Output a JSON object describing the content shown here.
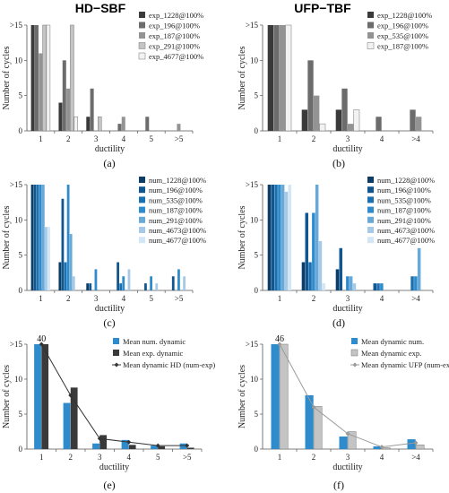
{
  "titles": {
    "left": "HD−SBF",
    "right": "UFP−TBF"
  },
  "chart_data": [
    {
      "id": "a",
      "type": "bar",
      "panel_label": "(a)",
      "xlabel": "ductility",
      "ylabel": "Number of cycles",
      "categories": [
        "1",
        "2",
        "3",
        "4",
        "5",
        ">5"
      ],
      "ylim": [
        0,
        15
      ],
      "yticks": [
        "0",
        "5",
        "10",
        ">15"
      ],
      "legend": "top-right",
      "series": [
        {
          "name": "exp_1228@100%",
          "color": "#3a3a3a",
          "values": [
            15,
            4,
            2,
            0,
            0,
            0
          ]
        },
        {
          "name": "exp_196@100%",
          "color": "#6c6c6c",
          "values": [
            15,
            10,
            6,
            1,
            2,
            0
          ]
        },
        {
          "name": "exp_187@100%",
          "color": "#939393",
          "values": [
            11,
            6,
            0,
            2,
            0,
            1
          ]
        },
        {
          "name": "exp_291@100%",
          "color": "#c4c4c4",
          "values": [
            15,
            15,
            2,
            0,
            0,
            0
          ]
        },
        {
          "name": "exp_4677@100%",
          "color": "#f2f2f2",
          "values": [
            15,
            2,
            0,
            0,
            0,
            0
          ]
        }
      ]
    },
    {
      "id": "b",
      "type": "bar",
      "panel_label": "(b)",
      "xlabel": "ductility",
      "ylabel": "Number of cycles",
      "categories": [
        "1",
        "2",
        "3",
        "4",
        ">4"
      ],
      "ylim": [
        0,
        15
      ],
      "yticks": [
        "0",
        "5",
        "10",
        ">15"
      ],
      "legend": "top-right",
      "series": [
        {
          "name": "exp_1228@100%",
          "color": "#3a3a3a",
          "values": [
            15,
            3,
            3,
            0,
            0
          ]
        },
        {
          "name": "exp_196@100%",
          "color": "#6c6c6c",
          "values": [
            15,
            10,
            6,
            2,
            3
          ]
        },
        {
          "name": "exp_535@100%",
          "color": "#939393",
          "values": [
            15,
            5,
            1,
            0,
            2
          ]
        },
        {
          "name": "exp_187@100%",
          "color": "#f2f2f2",
          "values": [
            15,
            1,
            3,
            0,
            0
          ]
        }
      ]
    },
    {
      "id": "c",
      "type": "bar",
      "panel_label": "(c)",
      "xlabel": "ductility",
      "ylabel": "Number of cycles",
      "categories": [
        "1",
        "2",
        "3",
        "4",
        "5",
        ">5"
      ],
      "ylim": [
        0,
        15
      ],
      "yticks": [
        "0",
        "5",
        "10",
        ">15"
      ],
      "legend": "top-right",
      "series": [
        {
          "name": "num_1228@100%",
          "color": "#0b3d68",
          "values": [
            15,
            4,
            1,
            0,
            0,
            0
          ]
        },
        {
          "name": "num_196@100%",
          "color": "#11568f",
          "values": [
            15,
            13,
            1,
            4,
            1,
            2
          ]
        },
        {
          "name": "num_535@100%",
          "color": "#1a70b0",
          "values": [
            15,
            4,
            0,
            1,
            0,
            0
          ]
        },
        {
          "name": "num_187@100%",
          "color": "#2e8bcc",
          "values": [
            15,
            15,
            3,
            2,
            2,
            3
          ]
        },
        {
          "name": "num_291@100%",
          "color": "#68a9d8",
          "values": [
            15,
            8,
            0,
            0,
            0,
            0
          ]
        },
        {
          "name": "num_4673@100%",
          "color": "#a5c9e7",
          "values": [
            9,
            2,
            0,
            3,
            1,
            2
          ]
        },
        {
          "name": "num_4677@100%",
          "color": "#d3e6f5",
          "values": [
            9,
            0,
            0,
            0,
            0,
            0
          ]
        }
      ]
    },
    {
      "id": "d",
      "type": "bar",
      "panel_label": "(d)",
      "xlabel": "ductility",
      "ylabel": "Number of cycles",
      "categories": [
        "1",
        "2",
        "3",
        "4",
        ">4"
      ],
      "ylim": [
        0,
        15
      ],
      "yticks": [
        "0",
        "5",
        "10",
        ">15"
      ],
      "legend": "top-right",
      "series": [
        {
          "name": "num_1228@100%",
          "color": "#0b3d68",
          "values": [
            15,
            4,
            3,
            0,
            0
          ]
        },
        {
          "name": "num_196@100%",
          "color": "#11568f",
          "values": [
            15,
            11,
            6,
            1,
            0
          ]
        },
        {
          "name": "num_535@100%",
          "color": "#1a70b0",
          "values": [
            15,
            4,
            0,
            1,
            2
          ]
        },
        {
          "name": "num_187@100%",
          "color": "#2e8bcc",
          "values": [
            15,
            11,
            2,
            1,
            2
          ]
        },
        {
          "name": "num_291@100%",
          "color": "#68a9d8",
          "values": [
            15,
            15,
            2,
            0,
            6
          ]
        },
        {
          "name": "num_4673@100%",
          "color": "#a5c9e7",
          "values": [
            14,
            7,
            1,
            0,
            0
          ]
        },
        {
          "name": "num_4677@100%",
          "color": "#d3e6f5",
          "values": [
            15,
            1,
            0,
            0,
            0
          ]
        }
      ]
    },
    {
      "id": "e",
      "type": "bar",
      "panel_label": "(e)",
      "xlabel": "ductility",
      "ylabel": "Number of cycles",
      "categories": [
        "1",
        "2",
        "3",
        "4",
        "5",
        ">5"
      ],
      "ylim": [
        0,
        15
      ],
      "yticks": [
        "0",
        "5",
        "10",
        ">15"
      ],
      "legend": "top-right",
      "series": [
        {
          "name": "Mean num. dynamic",
          "color": "#2e8bcc",
          "values": [
            15,
            6.6,
            0.8,
            1.3,
            0.5,
            0.8
          ]
        },
        {
          "name": "Mean exp. dynamic",
          "color": "#3a3a3a",
          "values": [
            15,
            8.8,
            2.0,
            0.6,
            0.4,
            0.2
          ]
        }
      ],
      "line": {
        "name": "Mean dynamic HD (num-exp)",
        "color": "#333333",
        "values": [
          15,
          7.7,
          1.5,
          1.0,
          0.5,
          0.5
        ]
      },
      "annotations": [
        {
          "category": "1",
          "text": "40"
        }
      ]
    },
    {
      "id": "f",
      "type": "bar",
      "panel_label": "(f)",
      "xlabel": "ductility",
      "ylabel": "Number of cycles",
      "categories": [
        "1",
        "2",
        "3",
        "4",
        ">4"
      ],
      "ylim": [
        0,
        15
      ],
      "yticks": [
        "0",
        "5",
        "10",
        ">15"
      ],
      "legend": "top-right",
      "series": [
        {
          "name": "Mean dynamic num.",
          "color": "#2e8bcc",
          "values": [
            15,
            7.7,
            1.8,
            0.4,
            1.4
          ]
        },
        {
          "name": "Mean dynamic exp.",
          "color": "#c4c4c4",
          "values": [
            15,
            6.1,
            2.5,
            0.2,
            0.6
          ]
        }
      ],
      "line": {
        "name": "Mean dynamic UFP (num-exp)",
        "color": "#9a9a9a",
        "values": [
          15,
          6.0,
          2.2,
          0.3,
          0.9
        ]
      },
      "annotations": [
        {
          "category": "1",
          "text": "46"
        }
      ]
    }
  ]
}
